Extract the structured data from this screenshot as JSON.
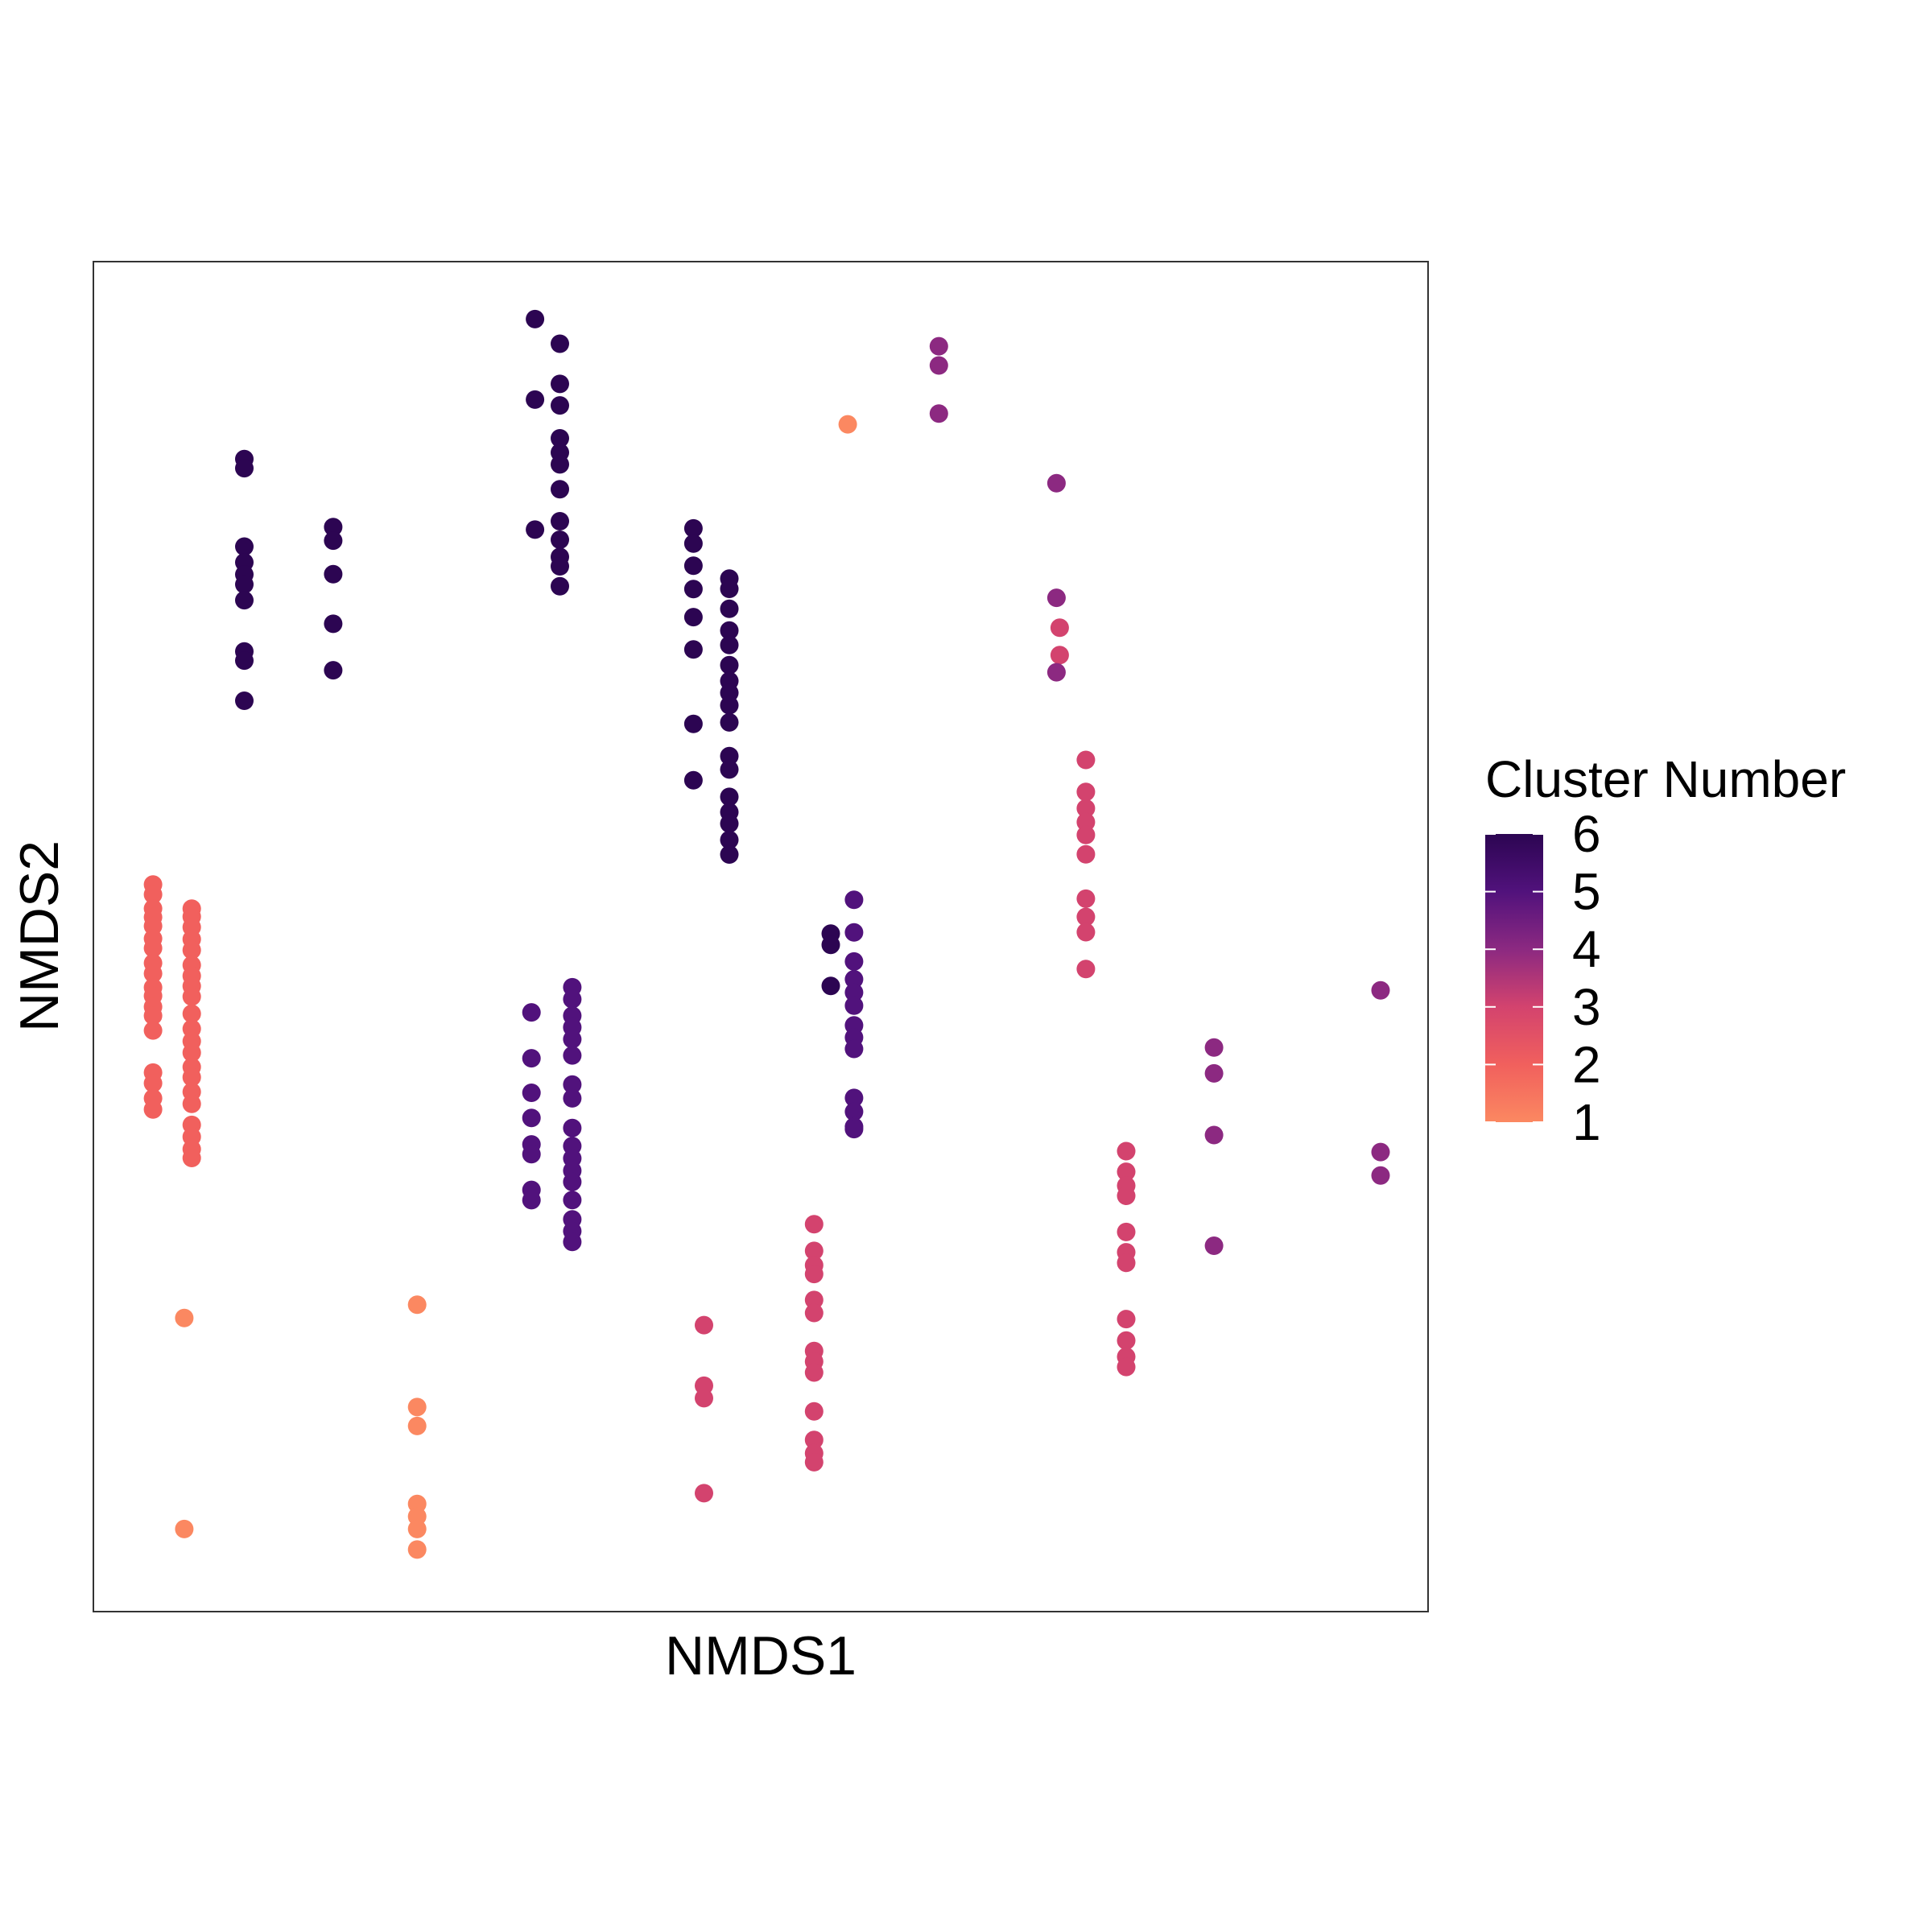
{
  "chart_data": {
    "type": "scatter",
    "title": "",
    "xlabel": "NMDS1",
    "ylabel": "NMDS2",
    "xlim": [
      0,
      1
    ],
    "ylim": [
      0,
      1
    ],
    "grid": false,
    "legend": {
      "title": "Cluster Number",
      "type": "colorbar",
      "placement": "right",
      "ticks": [
        1,
        2,
        3,
        4,
        5,
        6
      ],
      "range": [
        1,
        6
      ]
    },
    "colors": {
      "1": "#FB8861",
      "2": "#F1605D",
      "3": "#D3436E",
      "4": "#8C2981",
      "5": "#51127C",
      "6": "#2C0552"
    },
    "series": [
      {
        "cluster": 1,
        "points": [
          [
            0.0681,
            0.2175
          ],
          [
            0.0681,
            0.0612
          ],
          [
            0.2426,
            0.2273
          ],
          [
            0.2426,
            0.1515
          ],
          [
            0.2426,
            0.1375
          ],
          [
            0.2426,
            0.0798
          ],
          [
            0.2426,
            0.0705
          ],
          [
            0.2426,
            0.0612
          ],
          [
            0.2426,
            0.046
          ],
          [
            0.5652,
            0.8795
          ]
        ]
      },
      {
        "cluster": 2,
        "points": [
          [
            0.0447,
            0.5386
          ],
          [
            0.0447,
            0.5312
          ],
          [
            0.0447,
            0.5208
          ],
          [
            0.0447,
            0.5144
          ],
          [
            0.0447,
            0.5078
          ],
          [
            0.0447,
            0.4985
          ],
          [
            0.0447,
            0.4914
          ],
          [
            0.0447,
            0.4804
          ],
          [
            0.0447,
            0.4726
          ],
          [
            0.0447,
            0.4623
          ],
          [
            0.0447,
            0.4561
          ],
          [
            0.0447,
            0.448
          ],
          [
            0.0447,
            0.4414
          ],
          [
            0.0447,
            0.4305
          ],
          [
            0.0447,
            0.3993
          ],
          [
            0.0447,
            0.3914
          ],
          [
            0.0447,
            0.3802
          ],
          [
            0.0447,
            0.372
          ],
          [
            0.0737,
            0.5207
          ],
          [
            0.0737,
            0.5148
          ],
          [
            0.0737,
            0.507
          ],
          [
            0.0737,
            0.4981
          ],
          [
            0.0737,
            0.49
          ],
          [
            0.0737,
            0.4789
          ],
          [
            0.0737,
            0.4709
          ],
          [
            0.0737,
            0.4633
          ],
          [
            0.0737,
            0.4556
          ],
          [
            0.0737,
            0.4429
          ],
          [
            0.0737,
            0.4317
          ],
          [
            0.0737,
            0.4225
          ],
          [
            0.0737,
            0.414
          ],
          [
            0.0737,
            0.4034
          ],
          [
            0.0737,
            0.3958
          ],
          [
            0.0737,
            0.385
          ],
          [
            0.0737,
            0.3761
          ],
          [
            0.0737,
            0.3605
          ],
          [
            0.0737,
            0.3517
          ],
          [
            0.0737,
            0.3426
          ],
          [
            0.0737,
            0.336
          ]
        ]
      },
      {
        "cluster": 3,
        "points": [
          [
            0.4575,
            0.2122
          ],
          [
            0.4575,
            0.1673
          ],
          [
            0.4575,
            0.1581
          ],
          [
            0.4575,
            0.0877
          ],
          [
            0.54,
            0.287
          ],
          [
            0.54,
            0.2672
          ],
          [
            0.54,
            0.2566
          ],
          [
            0.54,
            0.2501
          ],
          [
            0.54,
            0.2308
          ],
          [
            0.54,
            0.2212
          ],
          [
            0.54,
            0.193
          ],
          [
            0.54,
            0.1852
          ],
          [
            0.54,
            0.1771
          ],
          [
            0.54,
            0.1483
          ],
          [
            0.54,
            0.1272
          ],
          [
            0.54,
            0.1173
          ],
          [
            0.54,
            0.1107
          ],
          [
            0.724,
            0.7288
          ],
          [
            0.724,
            0.7085
          ],
          [
            0.7436,
            0.6309
          ],
          [
            0.7436,
            0.6072
          ],
          [
            0.7436,
            0.595
          ],
          [
            0.7436,
            0.5848
          ],
          [
            0.7436,
            0.5753
          ],
          [
            0.7436,
            0.561
          ],
          [
            0.7436,
            0.5281
          ],
          [
            0.7436,
            0.5146
          ],
          [
            0.7436,
            0.5033
          ],
          [
            0.7436,
            0.476
          ],
          [
            0.7738,
            0.3411
          ],
          [
            0.7738,
            0.3258
          ],
          [
            0.7738,
            0.3155
          ],
          [
            0.7738,
            0.308
          ],
          [
            0.7738,
            0.2812
          ],
          [
            0.7738,
            0.2662
          ],
          [
            0.7738,
            0.2583
          ],
          [
            0.7738,
            0.2167
          ],
          [
            0.7738,
            0.2008
          ],
          [
            0.7738,
            0.1888
          ],
          [
            0.7738,
            0.1812
          ]
        ]
      },
      {
        "cluster": 4,
        "points": [
          [
            0.6335,
            0.9373
          ],
          [
            0.6335,
            0.9231
          ],
          [
            0.6335,
            0.8874
          ],
          [
            0.7216,
            0.8359
          ],
          [
            0.7216,
            0.751
          ],
          [
            0.7216,
            0.6958
          ],
          [
            0.8396,
            0.4178
          ],
          [
            0.8396,
            0.3987
          ],
          [
            0.8396,
            0.353
          ],
          [
            0.8396,
            0.271
          ],
          [
            0.9644,
            0.4602
          ],
          [
            0.9644,
            0.3404
          ],
          [
            0.9644,
            0.3231
          ]
        ]
      },
      {
        "cluster": 5,
        "points": [
          [
            0.3282,
            0.4439
          ],
          [
            0.3282,
            0.4099
          ],
          [
            0.3282,
            0.3843
          ],
          [
            0.3282,
            0.3657
          ],
          [
            0.3282,
            0.3461
          ],
          [
            0.3282,
            0.3388
          ],
          [
            0.3282,
            0.3124
          ],
          [
            0.3282,
            0.3048
          ],
          [
            0.3588,
            0.4625
          ],
          [
            0.3588,
            0.4536
          ],
          [
            0.3588,
            0.4414
          ],
          [
            0.3588,
            0.4328
          ],
          [
            0.3588,
            0.424
          ],
          [
            0.3588,
            0.412
          ],
          [
            0.3588,
            0.3904
          ],
          [
            0.3588,
            0.3802
          ],
          [
            0.3588,
            0.3582
          ],
          [
            0.3588,
            0.3449
          ],
          [
            0.3588,
            0.3357
          ],
          [
            0.3588,
            0.3266
          ],
          [
            0.3588,
            0.3183
          ],
          [
            0.3588,
            0.3049
          ],
          [
            0.3588,
            0.2906
          ],
          [
            0.3588,
            0.2818
          ],
          [
            0.3588,
            0.2738
          ],
          [
            0.5699,
            0.5273
          ],
          [
            0.5699,
            0.5031
          ],
          [
            0.5699,
            0.4816
          ],
          [
            0.5699,
            0.4684
          ],
          [
            0.5699,
            0.4586
          ],
          [
            0.5699,
            0.4489
          ],
          [
            0.5699,
            0.4342
          ],
          [
            0.5699,
            0.4253
          ],
          [
            0.5699,
            0.4168
          ],
          [
            0.5699,
            0.3805
          ],
          [
            0.5699,
            0.3703
          ],
          [
            0.5699,
            0.3592
          ],
          [
            0.5699,
            0.3574
          ]
        ]
      },
      {
        "cluster": 6,
        "points": [
          [
            0.1131,
            0.8538
          ],
          [
            0.1131,
            0.847
          ],
          [
            0.1131,
            0.7889
          ],
          [
            0.1131,
            0.7772
          ],
          [
            0.1131,
            0.7683
          ],
          [
            0.1131,
            0.7609
          ],
          [
            0.1131,
            0.7492
          ],
          [
            0.1131,
            0.7112
          ],
          [
            0.1131,
            0.7045
          ],
          [
            0.1131,
            0.6747
          ],
          [
            0.1797,
            0.8034
          ],
          [
            0.1797,
            0.7933
          ],
          [
            0.1797,
            0.7685
          ],
          [
            0.1797,
            0.7317
          ],
          [
            0.1797,
            0.6973
          ],
          [
            0.3309,
            0.9574
          ],
          [
            0.3309,
            0.8978
          ],
          [
            0.3309,
            0.8015
          ],
          [
            0.3495,
            0.9392
          ],
          [
            0.3495,
            0.9094
          ],
          [
            0.3495,
            0.8935
          ],
          [
            0.3495,
            0.8691
          ],
          [
            0.3495,
            0.8586
          ],
          [
            0.3495,
            0.8498
          ],
          [
            0.3495,
            0.8314
          ],
          [
            0.3495,
            0.8077
          ],
          [
            0.3495,
            0.794
          ],
          [
            0.3495,
            0.7813
          ],
          [
            0.3495,
            0.7743
          ],
          [
            0.3495,
            0.7596
          ],
          [
            0.4496,
            0.8024
          ],
          [
            0.4496,
            0.7912
          ],
          [
            0.4496,
            0.7747
          ],
          [
            0.4496,
            0.7575
          ],
          [
            0.4496,
            0.7367
          ],
          [
            0.4496,
            0.7127
          ],
          [
            0.4496,
            0.6576
          ],
          [
            0.4496,
            0.6158
          ],
          [
            0.4765,
            0.7652
          ],
          [
            0.4765,
            0.7576
          ],
          [
            0.4765,
            0.7428
          ],
          [
            0.4765,
            0.7267
          ],
          [
            0.4765,
            0.716
          ],
          [
            0.4765,
            0.7011
          ],
          [
            0.4765,
            0.6893
          ],
          [
            0.4765,
            0.6806
          ],
          [
            0.4765,
            0.6714
          ],
          [
            0.4765,
            0.6587
          ],
          [
            0.4765,
            0.6337
          ],
          [
            0.4765,
            0.6238
          ],
          [
            0.4765,
            0.6035
          ],
          [
            0.4765,
            0.5922
          ],
          [
            0.4765,
            0.5837
          ],
          [
            0.4765,
            0.5716
          ],
          [
            0.4765,
            0.5608
          ],
          [
            0.5525,
            0.5022
          ],
          [
            0.5525,
            0.4939
          ],
          [
            0.5525,
            0.4635
          ]
        ]
      }
    ]
  }
}
